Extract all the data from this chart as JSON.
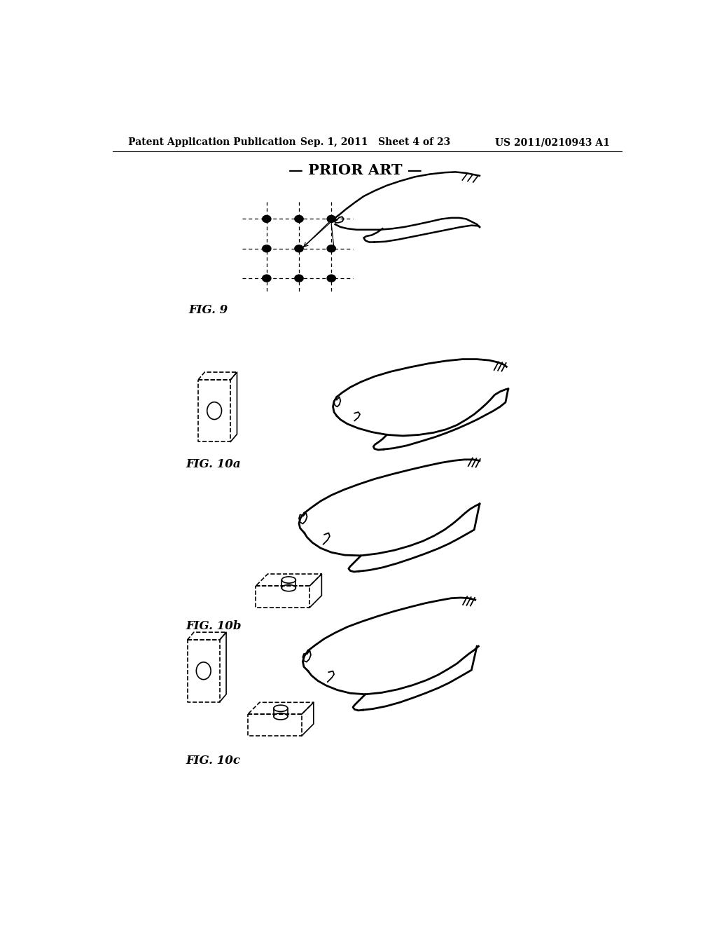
{
  "bg_color": "#ffffff",
  "header_left": "Patent Application Publication",
  "header_mid": "Sep. 1, 2011   Sheet 4 of 23",
  "header_right": "US 2011/0210943 A1",
  "prior_art_label": "— PRIOR ART —",
  "fig9_label": "FIG. 9",
  "fig10a_label": "FIG. 10a",
  "fig10b_label": "FIG. 10b",
  "fig10c_label": "FIG. 10c",
  "text_color": "#000000",
  "line_color": "#000000",
  "header_fontsize": 10,
  "prior_art_fontsize": 15,
  "fig_label_fontsize": 12
}
